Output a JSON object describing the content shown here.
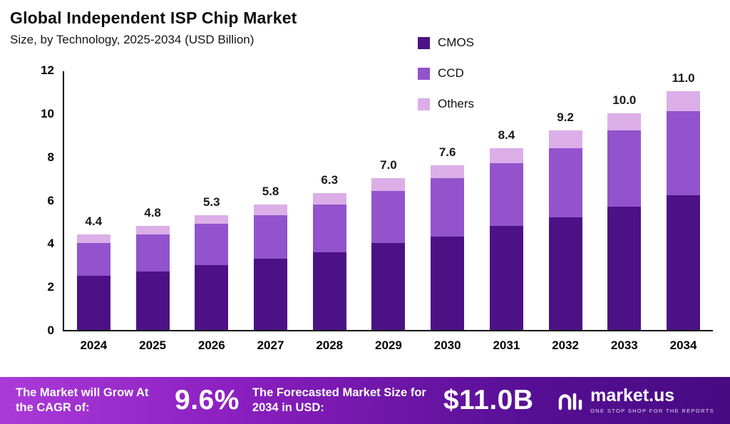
{
  "header": {
    "title": "Global Independent ISP Chip Market",
    "subtitle": "Size, by Technology, 2025-2034 (USD Billion)"
  },
  "chart_data": {
    "type": "bar",
    "stacked": true,
    "title": "Global Independent ISP Chip Market Size, by Technology, 2025-2034 (USD Billion)",
    "categories": [
      "2024",
      "2025",
      "2026",
      "2027",
      "2028",
      "2029",
      "2030",
      "2031",
      "2032",
      "2033",
      "2034"
    ],
    "series": [
      {
        "name": "CMOS",
        "color": "#4c1285",
        "values": [
          2.5,
          2.7,
          3.0,
          3.3,
          3.6,
          4.0,
          4.3,
          4.8,
          5.2,
          5.7,
          6.2
        ]
      },
      {
        "name": "CCD",
        "color": "#9253cc",
        "values": [
          1.5,
          1.7,
          1.9,
          2.0,
          2.2,
          2.4,
          2.7,
          2.9,
          3.2,
          3.5,
          3.9
        ]
      },
      {
        "name": "Others",
        "color": "#dcaee8",
        "values": [
          0.4,
          0.4,
          0.4,
          0.5,
          0.5,
          0.6,
          0.6,
          0.7,
          0.8,
          0.8,
          0.9
        ]
      }
    ],
    "totals": [
      4.4,
      4.8,
      5.3,
      5.8,
      6.3,
      7.0,
      7.6,
      8.4,
      9.2,
      10.0,
      11.0
    ],
    "total_labels": [
      "4.4",
      "4.8",
      "5.3",
      "5.8",
      "6.3",
      "7.0",
      "7.6",
      "8.4",
      "9.2",
      "10.0",
      "11.0"
    ],
    "ylim": [
      0,
      12
    ],
    "yticks": [
      0,
      2,
      4,
      6,
      8,
      10,
      12
    ],
    "grid": false,
    "legend_position": "top-right",
    "xlabel": "",
    "ylabel": ""
  },
  "banner": {
    "cagr_label": "The Market will Grow At the CAGR of:",
    "cagr_value": "9.6%",
    "forecast_label": "The Forecasted Market Size for 2034 in USD:",
    "forecast_value": "$11.0B",
    "brand": "market.us",
    "brand_tagline": "ONE STOP SHOP FOR THE REPORTS"
  }
}
